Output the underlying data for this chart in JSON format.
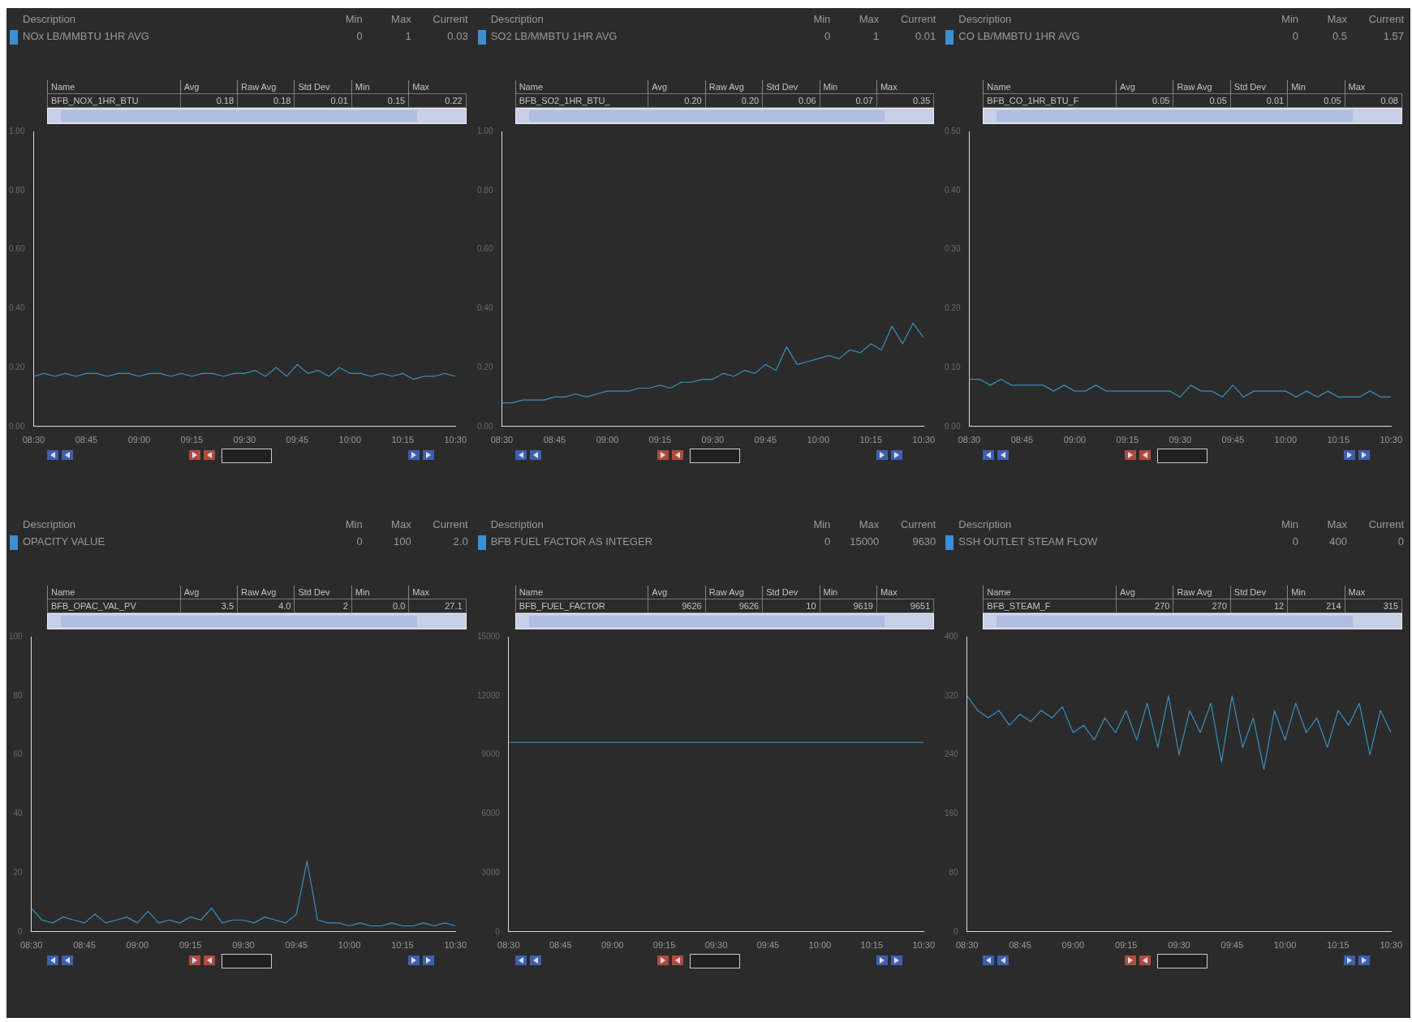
{
  "chart_data": [
    {
      "type": "line",
      "color": "#3a8fc0",
      "grid": false,
      "marker": "none",
      "annotations": [
        "Description",
        "Min",
        "Max",
        "Current",
        "NOx LB/MMBTU 1HR AVG",
        "0",
        "1",
        "0.03",
        "Name",
        "Avg",
        "Raw Avg",
        "Std Dev",
        "Min",
        "Max",
        "BFB_NOX_1HR_BTU",
        "0.18",
        "0.18",
        "0.01",
        "0.15",
        "0.22"
      ],
      "x": [
        8.5,
        8.55,
        8.6,
        8.65,
        8.7,
        8.75,
        8.8,
        8.85,
        8.9,
        8.95,
        9,
        9.05,
        9.1,
        9.15,
        9.2,
        9.25,
        9.3,
        9.35,
        9.4,
        9.45,
        9.5,
        9.55,
        9.6,
        9.65,
        9.7,
        9.75,
        9.8,
        9.85,
        9.9,
        9.95,
        10,
        10.05,
        10.1,
        10.15,
        10.2,
        10.25,
        10.3,
        10.35,
        10.4,
        10.45,
        10.5
      ],
      "values": [
        0.17,
        0.18,
        0.17,
        0.18,
        0.17,
        0.18,
        0.18,
        0.17,
        0.18,
        0.18,
        0.17,
        0.18,
        0.18,
        0.17,
        0.18,
        0.17,
        0.18,
        0.18,
        0.17,
        0.18,
        0.18,
        0.19,
        0.17,
        0.2,
        0.17,
        0.21,
        0.18,
        0.19,
        0.17,
        0.2,
        0.18,
        0.18,
        0.17,
        0.18,
        0.17,
        0.18,
        0.16,
        0.17,
        0.17,
        0.18,
        0.17
      ],
      "xlim": [
        8.5,
        10.5
      ],
      "xticks": [
        {
          "value": 8.5,
          "label": "08:30"
        },
        {
          "value": 8.75,
          "label": "08:45"
        },
        {
          "value": 9,
          "label": "09:00"
        },
        {
          "value": 9.25,
          "label": "09:15"
        },
        {
          "value": 9.5,
          "label": "09:30"
        },
        {
          "value": 9.75,
          "label": "09:45"
        },
        {
          "value": 10,
          "label": "10:00"
        },
        {
          "value": 10.25,
          "label": "10:15"
        },
        {
          "value": 10.5,
          "label": "10:30"
        }
      ],
      "ylim": [
        0,
        1
      ],
      "yticks": [
        {
          "value": 0,
          "label": "0.00"
        },
        {
          "value": 0.2,
          "label": "0.20"
        },
        {
          "value": 0.4,
          "label": "0.40"
        },
        {
          "value": 0.6,
          "label": "0.60"
        },
        {
          "value": 0.8,
          "label": "0.80"
        },
        {
          "value": 1,
          "label": "1.00"
        }
      ]
    },
    {
      "type": "line",
      "color": "#3a8fc0",
      "grid": false,
      "marker": "none",
      "annotations": [
        "Description",
        "Min",
        "Max",
        "Current",
        "SO2 LB/MMBTU 1HR AVG",
        "0",
        "1",
        "0.01",
        "Name",
        "Avg",
        "Raw Avg",
        "Std Dev",
        "Min",
        "Max",
        "BFB_SO2_1HR_BTU_",
        "0.20",
        "0.20",
        "0.06",
        "0.07",
        "0.35"
      ],
      "x": [
        8.5,
        8.55,
        8.6,
        8.65,
        8.7,
        8.75,
        8.8,
        8.85,
        8.9,
        8.95,
        9,
        9.05,
        9.1,
        9.15,
        9.2,
        9.25,
        9.3,
        9.35,
        9.4,
        9.45,
        9.5,
        9.55,
        9.6,
        9.65,
        9.7,
        9.75,
        9.8,
        9.85,
        9.9,
        9.95,
        10,
        10.05,
        10.1,
        10.15,
        10.2,
        10.25,
        10.3,
        10.35,
        10.4,
        10.45,
        10.5
      ],
      "values": [
        0.08,
        0.08,
        0.09,
        0.09,
        0.09,
        0.1,
        0.1,
        0.11,
        0.1,
        0.11,
        0.12,
        0.12,
        0.12,
        0.13,
        0.13,
        0.14,
        0.13,
        0.15,
        0.15,
        0.16,
        0.16,
        0.18,
        0.17,
        0.19,
        0.18,
        0.21,
        0.19,
        0.27,
        0.21,
        0.22,
        0.23,
        0.24,
        0.23,
        0.26,
        0.25,
        0.28,
        0.26,
        0.34,
        0.28,
        0.35,
        0.3
      ],
      "xlim": [
        8.5,
        10.5
      ],
      "xticks": [
        {
          "value": 8.5,
          "label": "08:30"
        },
        {
          "value": 8.75,
          "label": "08:45"
        },
        {
          "value": 9,
          "label": "09:00"
        },
        {
          "value": 9.25,
          "label": "09:15"
        },
        {
          "value": 9.5,
          "label": "09:30"
        },
        {
          "value": 9.75,
          "label": "09:45"
        },
        {
          "value": 10,
          "label": "10:00"
        },
        {
          "value": 10.25,
          "label": "10:15"
        },
        {
          "value": 10.5,
          "label": "10:30"
        }
      ],
      "ylim": [
        0,
        1
      ],
      "yticks": [
        {
          "value": 0,
          "label": "0.00"
        },
        {
          "value": 0.2,
          "label": "0.20"
        },
        {
          "value": 0.4,
          "label": "0.40"
        },
        {
          "value": 0.6,
          "label": "0.60"
        },
        {
          "value": 0.8,
          "label": "0.80"
        },
        {
          "value": 1,
          "label": "1.00"
        }
      ]
    },
    {
      "type": "line",
      "color": "#3a8fc0",
      "grid": false,
      "marker": "none",
      "annotations": [
        "Description",
        "Min",
        "Max",
        "Current",
        "CO LB/MMBTU 1HR AVG",
        "0",
        "0.5",
        "1.57",
        "Name",
        "Avg",
        "Raw Avg",
        "Std Dev",
        "Min",
        "Max",
        "BFB_CO_1HR_BTU_F",
        "0.05",
        "0.05",
        "0.01",
        "0.05",
        "0.08"
      ],
      "x": [
        8.5,
        8.55,
        8.6,
        8.65,
        8.7,
        8.75,
        8.8,
        8.85,
        8.9,
        8.95,
        9,
        9.05,
        9.1,
        9.15,
        9.2,
        9.25,
        9.3,
        9.35,
        9.4,
        9.45,
        9.5,
        9.55,
        9.6,
        9.65,
        9.7,
        9.75,
        9.8,
        9.85,
        9.9,
        9.95,
        10,
        10.05,
        10.1,
        10.15,
        10.2,
        10.25,
        10.3,
        10.35,
        10.4,
        10.45,
        10.5
      ],
      "values": [
        0.08,
        0.08,
        0.07,
        0.08,
        0.07,
        0.07,
        0.07,
        0.07,
        0.06,
        0.07,
        0.06,
        0.06,
        0.07,
        0.06,
        0.06,
        0.06,
        0.06,
        0.06,
        0.06,
        0.06,
        0.05,
        0.07,
        0.06,
        0.06,
        0.05,
        0.07,
        0.05,
        0.06,
        0.06,
        0.06,
        0.06,
        0.05,
        0.06,
        0.05,
        0.06,
        0.05,
        0.05,
        0.05,
        0.06,
        0.05,
        0.05
      ],
      "xlim": [
        8.5,
        10.5
      ],
      "xticks": [
        {
          "value": 8.5,
          "label": "08:30"
        },
        {
          "value": 8.75,
          "label": "08:45"
        },
        {
          "value": 9,
          "label": "09:00"
        },
        {
          "value": 9.25,
          "label": "09:15"
        },
        {
          "value": 9.5,
          "label": "09:30"
        },
        {
          "value": 9.75,
          "label": "09:45"
        },
        {
          "value": 10,
          "label": "10:00"
        },
        {
          "value": 10.25,
          "label": "10:15"
        },
        {
          "value": 10.5,
          "label": "10:30"
        }
      ],
      "ylim": [
        0,
        0.5
      ],
      "yticks": [
        {
          "value": 0,
          "label": "0.00"
        },
        {
          "value": 0.1,
          "label": "0.10"
        },
        {
          "value": 0.2,
          "label": "0.20"
        },
        {
          "value": 0.3,
          "label": "0.30"
        },
        {
          "value": 0.4,
          "label": "0.40"
        },
        {
          "value": 0.5,
          "label": "0.50"
        }
      ]
    },
    {
      "type": "line",
      "color": "#3a8fc0",
      "grid": false,
      "marker": "none",
      "annotations": [
        "Description",
        "Min",
        "Max",
        "Current",
        "OPACITY VALUE",
        "0",
        "100",
        "2.0",
        "Name",
        "Avg",
        "Raw Avg",
        "Std Dev",
        "Min",
        "Max",
        "BFB_OPAC_VAL_PV",
        "3.5",
        "4.0",
        "2",
        "0.0",
        "27.1"
      ],
      "x": [
        8.5,
        8.55,
        8.6,
        8.65,
        8.7,
        8.75,
        8.8,
        8.85,
        8.9,
        8.95,
        9,
        9.05,
        9.1,
        9.15,
        9.2,
        9.25,
        9.3,
        9.35,
        9.4,
        9.45,
        9.5,
        9.55,
        9.6,
        9.65,
        9.7,
        9.75,
        9.8,
        9.85,
        9.9,
        9.95,
        10,
        10.05,
        10.1,
        10.15,
        10.2,
        10.25,
        10.3,
        10.35,
        10.4,
        10.45,
        10.5
      ],
      "values": [
        8,
        4,
        3,
        5,
        4,
        3,
        6,
        3,
        4,
        5,
        3,
        7,
        3,
        4,
        3,
        5,
        4,
        8,
        3,
        4,
        4,
        3,
        5,
        4,
        3,
        6,
        24,
        4,
        3,
        3,
        2,
        3,
        2,
        2,
        3,
        2,
        2,
        3,
        2,
        3,
        2
      ],
      "xlim": [
        8.5,
        10.5
      ],
      "xticks": [
        {
          "value": 8.5,
          "label": "08:30"
        },
        {
          "value": 8.75,
          "label": "08:45"
        },
        {
          "value": 9,
          "label": "09:00"
        },
        {
          "value": 9.25,
          "label": "09:15"
        },
        {
          "value": 9.5,
          "label": "09:30"
        },
        {
          "value": 9.75,
          "label": "09:45"
        },
        {
          "value": 10,
          "label": "10:00"
        },
        {
          "value": 10.25,
          "label": "10:15"
        },
        {
          "value": 10.5,
          "label": "10:30"
        }
      ],
      "ylim": [
        0,
        100
      ],
      "yticks": [
        0,
        20,
        40,
        60,
        80,
        100
      ]
    },
    {
      "type": "line",
      "color": "#3a8fc0",
      "grid": false,
      "marker": "none",
      "annotations": [
        "Description",
        "Min",
        "Max",
        "Current",
        "BFB FUEL FACTOR AS INTEGER",
        "0",
        "15000",
        "9630",
        "Name",
        "Avg",
        "Raw Avg",
        "Std Dev",
        "Min",
        "Max",
        "BFB_FUEL_FACTOR",
        "9626",
        "9626",
        "10",
        "9619",
        "9651"
      ],
      "x": [
        8.5,
        8.75,
        9,
        9.25,
        9.5,
        9.75,
        10,
        10.25,
        10.5
      ],
      "values": [
        9630,
        9630,
        9630,
        9630,
        9630,
        9630,
        9630,
        9630,
        9630
      ],
      "xlim": [
        8.5,
        10.5
      ],
      "xticks": [
        {
          "value": 8.5,
          "label": "08:30"
        },
        {
          "value": 8.75,
          "label": "08:45"
        },
        {
          "value": 9,
          "label": "09:00"
        },
        {
          "value": 9.25,
          "label": "09:15"
        },
        {
          "value": 9.5,
          "label": "09:30"
        },
        {
          "value": 9.75,
          "label": "09:45"
        },
        {
          "value": 10,
          "label": "10:00"
        },
        {
          "value": 10.25,
          "label": "10:15"
        },
        {
          "value": 10.5,
          "label": "10:30"
        }
      ],
      "ylim": [
        0,
        15000
      ],
      "yticks": [
        0,
        3000,
        6000,
        9000,
        12000,
        15000
      ]
    },
    {
      "type": "line",
      "color": "#3a8fc0",
      "grid": false,
      "marker": "none",
      "annotations": [
        "Description",
        "Min",
        "Max",
        "Current",
        "SSH OUTLET STEAM FLOW",
        "0",
        "400",
        "0",
        "Name",
        "Avg",
        "Raw Avg",
        "Std Dev",
        "Min",
        "Max",
        "BFB_STEAM_F",
        "270",
        "270",
        "12",
        "214",
        "315"
      ],
      "x": [
        8.5,
        8.55,
        8.6,
        8.65,
        8.7,
        8.75,
        8.8,
        8.85,
        8.9,
        8.95,
        9,
        9.05,
        9.1,
        9.15,
        9.2,
        9.25,
        9.3,
        9.35,
        9.4,
        9.45,
        9.5,
        9.55,
        9.6,
        9.65,
        9.7,
        9.75,
        9.8,
        9.85,
        9.9,
        9.95,
        10,
        10.05,
        10.1,
        10.15,
        10.2,
        10.25,
        10.3,
        10.35,
        10.4,
        10.45,
        10.5
      ],
      "values": [
        320,
        300,
        290,
        300,
        280,
        295,
        285,
        300,
        290,
        305,
        270,
        280,
        260,
        290,
        270,
        300,
        260,
        310,
        250,
        320,
        240,
        300,
        270,
        310,
        230,
        320,
        250,
        290,
        220,
        300,
        260,
        310,
        270,
        290,
        250,
        300,
        280,
        310,
        240,
        300,
        270
      ],
      "xlim": [
        8.5,
        10.5
      ],
      "xticks": [
        {
          "value": 8.5,
          "label": "08:30"
        },
        {
          "value": 8.75,
          "label": "08:45"
        },
        {
          "value": 9,
          "label": "09:00"
        },
        {
          "value": 9.25,
          "label": "09:15"
        },
        {
          "value": 9.5,
          "label": "09:30"
        },
        {
          "value": 9.75,
          "label": "09:45"
        },
        {
          "value": 10,
          "label": "10:00"
        },
        {
          "value": 10.25,
          "label": "10:15"
        },
        {
          "value": 10.5,
          "label": "10:30"
        }
      ],
      "ylim": [
        0,
        400
      ],
      "yticks": [
        0,
        80,
        160,
        240,
        320,
        400
      ]
    }
  ]
}
